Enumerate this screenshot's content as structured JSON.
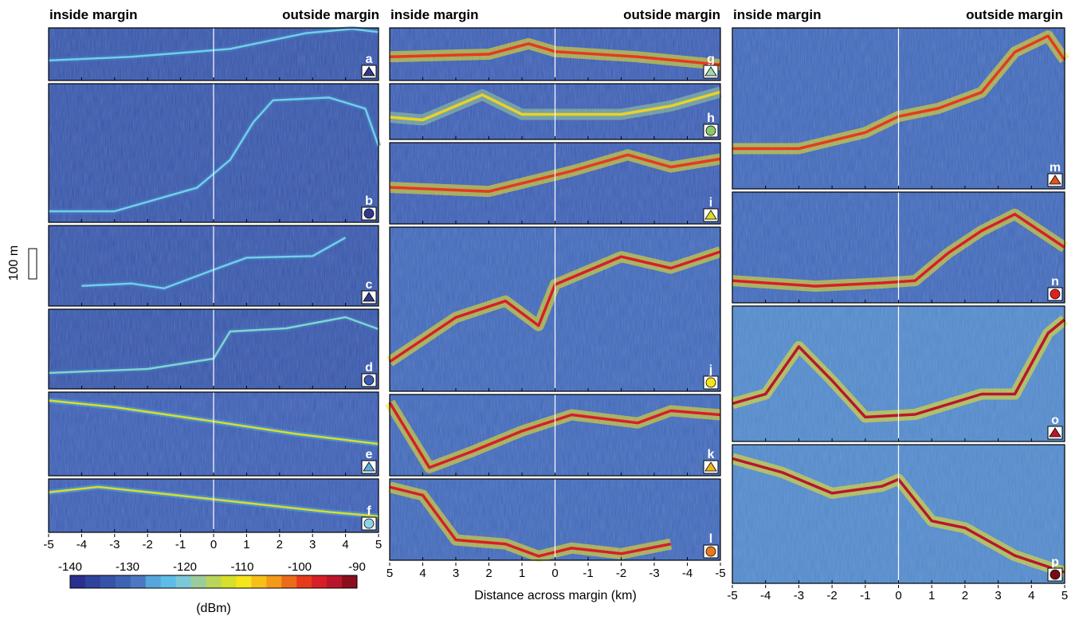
{
  "headers": {
    "inside": "inside margin",
    "outside": "outside margin"
  },
  "scale_bar_label": "100 m",
  "x_axis": {
    "label": "Distance across margin (km)",
    "left_ticks": [
      "-5",
      "-4",
      "-3",
      "-2",
      "-1",
      "0",
      "1",
      "2",
      "3",
      "4",
      "5"
    ],
    "middle_ticks": [
      "5",
      "4",
      "3",
      "2",
      "1",
      "0",
      "-1",
      "-2",
      "-3",
      "-4",
      "-5"
    ],
    "right_ticks": [
      "-5",
      "-4",
      "-3",
      "-2",
      "-1",
      "0",
      "1",
      "2",
      "3",
      "4",
      "5"
    ]
  },
  "colorbar": {
    "unit": "(dBm)",
    "tick_labels": [
      "-140",
      "-130",
      "-120",
      "-110",
      "-100",
      "-90"
    ],
    "range": [
      -140,
      -90
    ],
    "colors": [
      "#2b2f8f",
      "#30439c",
      "#3653a8",
      "#3d63b3",
      "#4a78c2",
      "#56a6dc",
      "#5dbde6",
      "#7cc8d8",
      "#9ccc9b",
      "#b9d65a",
      "#d6df2a",
      "#f5e51b",
      "#f7c019",
      "#f39a1a",
      "#ec6b1b",
      "#e43a1e",
      "#d61f26",
      "#b8172a",
      "#8c0e1e"
    ]
  },
  "panels": [
    {
      "label": "a",
      "marker": "triangle",
      "marker_color": "#2f3a8f"
    },
    {
      "label": "b",
      "marker": "circle",
      "marker_color": "#2f3a8f"
    },
    {
      "label": "c",
      "marker": "triangle",
      "marker_color": "#2f3a8f"
    },
    {
      "label": "d",
      "marker": "circle",
      "marker_color": "#3b57b0"
    },
    {
      "label": "e",
      "marker": "triangle",
      "marker_color": "#5aaee0"
    },
    {
      "label": "f",
      "marker": "circle",
      "marker_color": "#8fd3e8"
    },
    {
      "label": "g",
      "marker": "triangle",
      "marker_color": "#9fd8b0"
    },
    {
      "label": "h",
      "marker": "circle",
      "marker_color": "#8cc86a"
    },
    {
      "label": "i",
      "marker": "triangle",
      "marker_color": "#d6df2a"
    },
    {
      "label": "j",
      "marker": "circle",
      "marker_color": "#f5e51b"
    },
    {
      "label": "k",
      "marker": "triangle",
      "marker_color": "#f3b51a"
    },
    {
      "label": "l",
      "marker": "circle",
      "marker_color": "#ec7a1b"
    },
    {
      "label": "m",
      "marker": "triangle",
      "marker_color": "#e4501e"
    },
    {
      "label": "n",
      "marker": "circle",
      "marker_color": "#e0201e"
    },
    {
      "label": "o",
      "marker": "triangle",
      "marker_color": "#b8172a"
    },
    {
      "label": "p",
      "marker": "circle",
      "marker_color": "#7a0c16"
    }
  ]
}
